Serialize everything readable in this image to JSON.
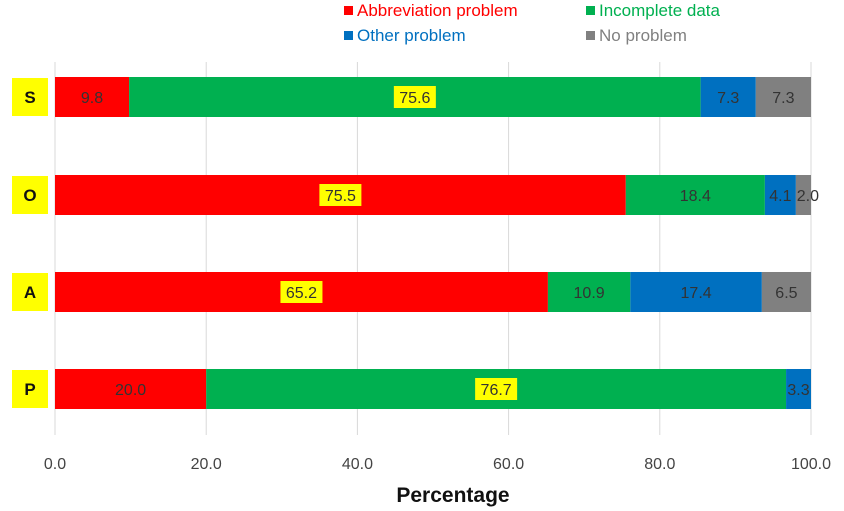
{
  "chart_data": {
    "type": "bar",
    "orientation": "horizontal",
    "stacked": true,
    "categories": [
      "S",
      "O",
      "A",
      "P"
    ],
    "series": [
      {
        "name": "Abbreviation problem",
        "color": "#ff0000",
        "values": [
          9.8,
          75.5,
          65.2,
          20.0
        ]
      },
      {
        "name": "Incomplete data",
        "color": "#00b050",
        "values": [
          75.6,
          18.4,
          10.9,
          76.7
        ]
      },
      {
        "name": "Other problem",
        "color": "#0070c0",
        "values": [
          7.3,
          4.1,
          17.4,
          3.3
        ]
      },
      {
        "name": "No problem",
        "color": "#808080",
        "values": [
          7.3,
          2.0,
          6.5,
          null
        ]
      }
    ],
    "data_labels": {
      "S": [
        "9.8",
        "75.6",
        "7.3",
        "7.3"
      ],
      "O": [
        "75.5",
        "18.4",
        "4.1",
        "2.0"
      ],
      "A": [
        "65.2",
        "10.9",
        "17.4",
        "6.5"
      ],
      "P": [
        "20.0",
        "76.7",
        "3.3",
        ""
      ]
    },
    "highlighted_labels": {
      "S": 1,
      "O": 0,
      "A": 0,
      "P": 1
    },
    "xlim": [
      0,
      100
    ],
    "xticks": [
      "0.0",
      "20.0",
      "40.0",
      "60.0",
      "80.0",
      "100.0"
    ],
    "xlabel": "Percentage",
    "ylabel": "",
    "grid": "vertical",
    "legend_position": "top",
    "category_label_background": "#ffff00"
  }
}
